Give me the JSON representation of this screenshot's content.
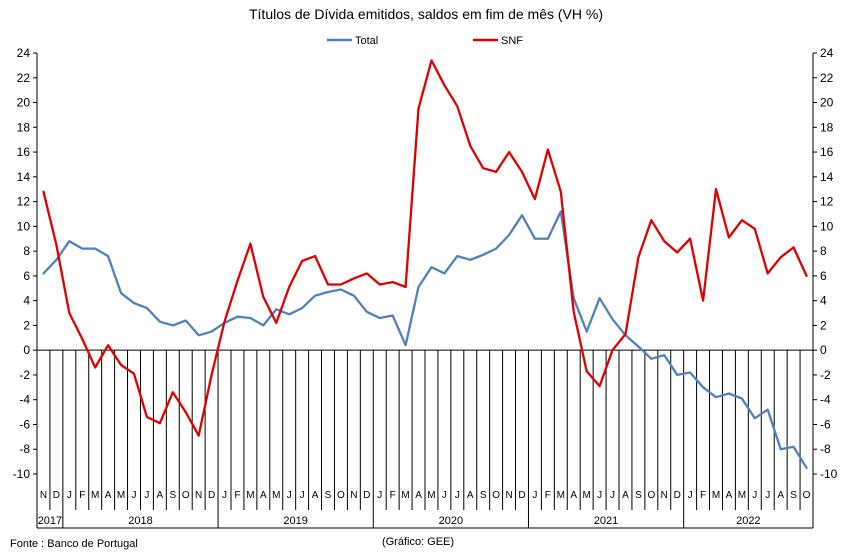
{
  "chart_data": {
    "type": "line",
    "title": "Títulos de Dívida emitidos, saldos em fim de mês  (VH %)",
    "ylim": [
      -10,
      24
    ],
    "yticks": [
      "-10",
      "-8",
      "-6",
      "-4",
      "-2",
      "0",
      "2",
      "4",
      "6",
      "8",
      "10",
      "12",
      "14",
      "16",
      "18",
      "20",
      "22",
      "24"
    ],
    "grid": false,
    "legend": "top-center",
    "month_labels": [
      "N",
      "D",
      "J",
      "F",
      "M",
      "A",
      "M",
      "J",
      "J",
      "A",
      "S",
      "O",
      "N",
      "D",
      "J",
      "F",
      "M",
      "A",
      "M",
      "J",
      "J",
      "A",
      "S",
      "O",
      "N",
      "D",
      "J",
      "F",
      "M",
      "A",
      "M",
      "J",
      "J",
      "A",
      "S",
      "O",
      "N",
      "D",
      "J",
      "F",
      "M",
      "A",
      "M",
      "J",
      "J",
      "A",
      "S",
      "O",
      "N",
      "D",
      "J",
      "F",
      "M",
      "A",
      "M",
      "J",
      "J",
      "A",
      "S",
      "O"
    ],
    "year_groups": [
      {
        "label": "2017",
        "start": 0,
        "end": 2
      },
      {
        "label": "2018",
        "start": 2,
        "end": 14
      },
      {
        "label": "2019",
        "start": 14,
        "end": 26
      },
      {
        "label": "2020",
        "start": 26,
        "end": 38
      },
      {
        "label": "2021",
        "start": 38,
        "end": 50
      },
      {
        "label": "2022",
        "start": 50,
        "end": 60
      }
    ],
    "series": [
      {
        "name": "Total",
        "color": "#4f81bd",
        "values": [
          6.2,
          7.3,
          8.8,
          8.2,
          8.2,
          7.6,
          4.6,
          3.8,
          3.4,
          2.3,
          2.0,
          2.4,
          1.2,
          1.5,
          2.2,
          2.7,
          2.6,
          2.0,
          3.3,
          2.9,
          3.4,
          4.4,
          4.7,
          4.9,
          4.4,
          3.1,
          2.6,
          2.8,
          0.4,
          5.1,
          6.7,
          6.2,
          7.6,
          7.3,
          7.7,
          8.2,
          9.3,
          10.9,
          9.0,
          9.0,
          11.2,
          4.2,
          1.5,
          4.2,
          2.5,
          1.2,
          0.3,
          -0.7,
          -0.4,
          -2.0,
          -1.8,
          -3.0,
          -3.8,
          -3.5,
          -3.9,
          -5.5,
          -4.8,
          -8.0,
          -7.8,
          -9.5
        ]
      },
      {
        "name": "SNF",
        "color": "#e00000",
        "values": [
          12.8,
          8.5,
          3.0,
          0.9,
          -1.4,
          0.4,
          -1.2,
          -1.9,
          -5.4,
          -5.9,
          -3.4,
          -5.0,
          -6.9,
          -2.0,
          2.3,
          5.6,
          8.6,
          4.3,
          2.2,
          5.1,
          7.2,
          7.6,
          5.3,
          5.3,
          5.8,
          6.2,
          5.3,
          5.5,
          5.1,
          19.5,
          23.4,
          21.4,
          19.7,
          16.5,
          14.7,
          14.4,
          16.0,
          14.4,
          12.2,
          16.2,
          12.8,
          3.1,
          -1.7,
          -2.9,
          0.0,
          1.3,
          7.5,
          10.5,
          8.8,
          7.9,
          9.0,
          4.0,
          13.0,
          9.1,
          10.5,
          9.8,
          6.2,
          7.5,
          8.3,
          6.0
        ]
      }
    ]
  },
  "footer": {
    "source": "Fonte : Banco de Portugal",
    "credit": "(Gráfico: GEE)"
  }
}
